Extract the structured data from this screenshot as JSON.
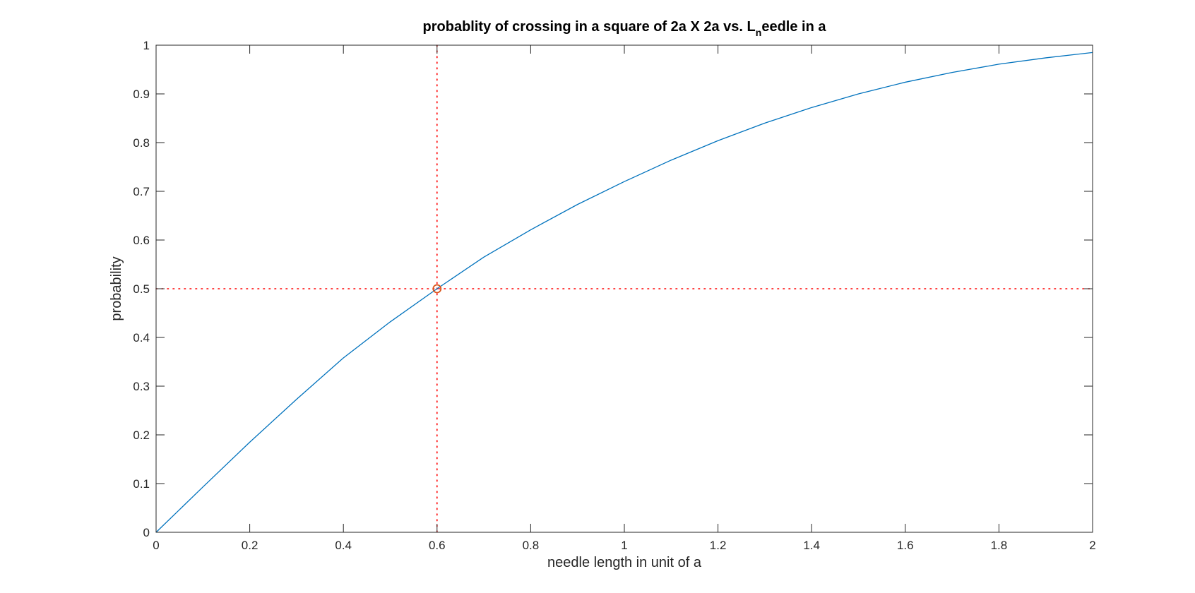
{
  "chart_data": {
    "type": "line",
    "title": {
      "main": "probablity of crossing in a square of 2a X 2a vs. L",
      "subscript": "n",
      "rest": "eedle in a"
    },
    "xlabel": "needle length in unit of a",
    "ylabel": "probability",
    "xlim": [
      0,
      2
    ],
    "ylim": [
      0,
      1
    ],
    "xticks": [
      0,
      0.2,
      0.4,
      0.6,
      0.8,
      1,
      1.2,
      1.4,
      1.6,
      1.8,
      2
    ],
    "xtick_labels": [
      "0",
      "0.2",
      "0.4",
      "0.6",
      "0.8",
      "1",
      "1.2",
      "1.4",
      "1.6",
      "1.8",
      "2"
    ],
    "yticks": [
      0,
      0.1,
      0.2,
      0.3,
      0.4,
      0.5,
      0.6,
      0.7,
      0.8,
      0.9,
      1
    ],
    "ytick_labels": [
      "0",
      "0.1",
      "0.2",
      "0.3",
      "0.4",
      "0.5",
      "0.6",
      "0.7",
      "0.8",
      "0.9",
      "1"
    ],
    "grid": false,
    "series": [
      {
        "color": "#0072BD",
        "style": "solid",
        "x": [
          0,
          0.1,
          0.2,
          0.3,
          0.4,
          0.5,
          0.6,
          0.7,
          0.8,
          0.9,
          1.0,
          1.1,
          1.2,
          1.3,
          1.4,
          1.5,
          1.6,
          1.7,
          1.8,
          1.9,
          2.0
        ],
        "y": [
          0,
          0.093,
          0.185,
          0.273,
          0.358,
          0.432,
          0.5,
          0.565,
          0.621,
          0.673,
          0.72,
          0.764,
          0.804,
          0.84,
          0.872,
          0.9,
          0.924,
          0.944,
          0.961,
          0.974,
          0.985
        ]
      }
    ],
    "reference_lines": {
      "color": "#FF0000",
      "style": "dotted",
      "vertical_x": 0.6,
      "horizontal_y": 0.5
    },
    "marker": {
      "x": 0.6,
      "y": 0.5,
      "shape": "circle",
      "color": "#D95319"
    }
  }
}
